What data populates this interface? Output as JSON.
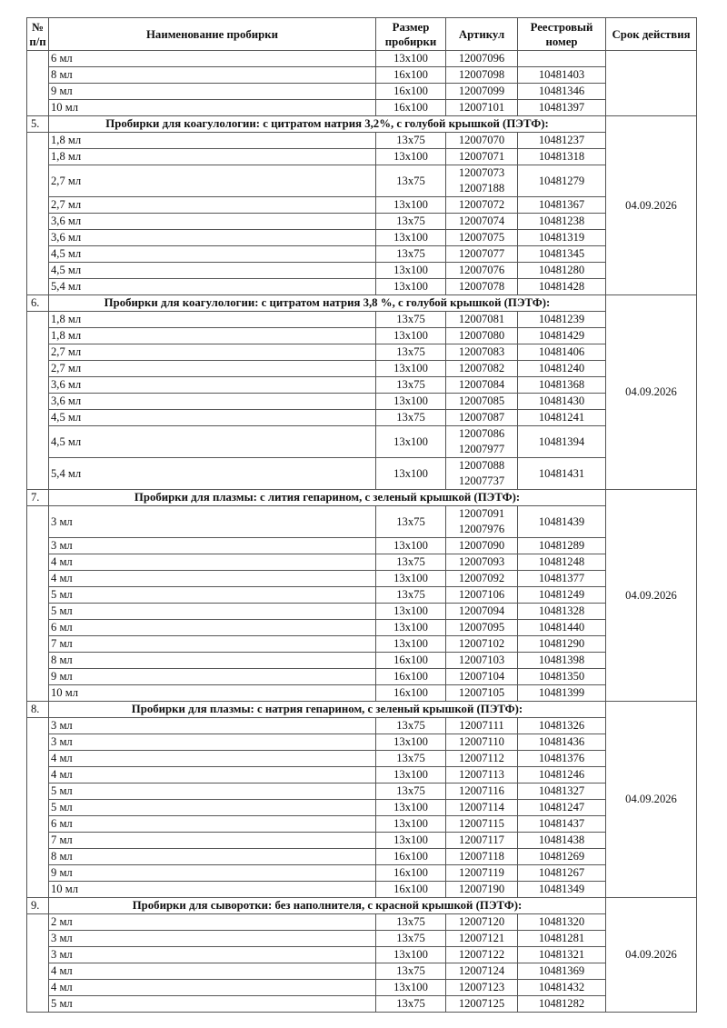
{
  "header": {
    "num": "№ п/п",
    "name": "Наименование пробирки",
    "size": "Размер пробирки",
    "article": "Артикул",
    "reg": "Реестровый номер",
    "date": "Срок действия"
  },
  "sections": [
    {
      "num": "",
      "title": "",
      "date": "",
      "rows": [
        {
          "name": "6 мл",
          "size": "13x100",
          "articles": [
            "12007096"
          ],
          "reg": ""
        },
        {
          "name": "8 мл",
          "size": "16x100",
          "articles": [
            "12007098"
          ],
          "reg": "10481403"
        },
        {
          "name": "9 мл",
          "size": "16x100",
          "articles": [
            "12007099"
          ],
          "reg": "10481346"
        },
        {
          "name": "10 мл",
          "size": "16x100",
          "articles": [
            "12007101"
          ],
          "reg": "10481397"
        }
      ]
    },
    {
      "num": "5.",
      "title": "Пробирки для коагулологии: с цитратом натрия 3,2%, с голубой крышкой (ПЭТФ):",
      "date": "04.09.2026",
      "rows": [
        {
          "name": "1,8 мл",
          "size": "13x75",
          "articles": [
            "12007070"
          ],
          "reg": "10481237"
        },
        {
          "name": "1,8 мл",
          "size": "13x100",
          "articles": [
            "12007071"
          ],
          "reg": "10481318"
        },
        {
          "name": "2,7 мл",
          "size": "13x75",
          "articles": [
            "12007073",
            "12007188"
          ],
          "reg": "10481279"
        },
        {
          "name": "2,7 мл",
          "size": "13x100",
          "articles": [
            "12007072"
          ],
          "reg": "10481367"
        },
        {
          "name": "3,6 мл",
          "size": "13x75",
          "articles": [
            "12007074"
          ],
          "reg": "10481238"
        },
        {
          "name": "3,6 мл",
          "size": "13x100",
          "articles": [
            "12007075"
          ],
          "reg": "10481319"
        },
        {
          "name": "4,5 мл",
          "size": "13x75",
          "articles": [
            "12007077"
          ],
          "reg": "10481345"
        },
        {
          "name": "4,5 мл",
          "size": "13x100",
          "articles": [
            "12007076"
          ],
          "reg": "10481280"
        },
        {
          "name": "5,4 мл",
          "size": "13x100",
          "articles": [
            "12007078"
          ],
          "reg": "10481428"
        }
      ]
    },
    {
      "num": "6.",
      "title": "Пробирки для коагулологии: с цитратом натрия 3,8 %, с голубой крышкой (ПЭТФ):",
      "date": "04.09.2026",
      "rows": [
        {
          "name": "1,8 мл",
          "size": "13x75",
          "articles": [
            "12007081"
          ],
          "reg": "10481239"
        },
        {
          "name": "1,8 мл",
          "size": "13x100",
          "articles": [
            "12007080"
          ],
          "reg": "10481429"
        },
        {
          "name": "2,7 мл",
          "size": "13x75",
          "articles": [
            "12007083"
          ],
          "reg": "10481406"
        },
        {
          "name": "2,7 мл",
          "size": "13x100",
          "articles": [
            "12007082"
          ],
          "reg": "10481240"
        },
        {
          "name": "3,6 мл",
          "size": "13x75",
          "articles": [
            "12007084"
          ],
          "reg": "10481368"
        },
        {
          "name": "3,6 мл",
          "size": "13x100",
          "articles": [
            "12007085"
          ],
          "reg": "10481430"
        },
        {
          "name": "4,5 мл",
          "size": "13x75",
          "articles": [
            "12007087"
          ],
          "reg": "10481241"
        },
        {
          "name": "4,5 мл",
          "size": "13x100",
          "articles": [
            "12007086",
            "12007977"
          ],
          "reg": "10481394"
        },
        {
          "name": "5,4 мл",
          "size": "13x100",
          "articles": [
            "12007088",
            "12007737"
          ],
          "reg": "10481431"
        }
      ]
    },
    {
      "num": "7.",
      "title": "Пробирки для плазмы: с лития гепарином, с зеленый крышкой (ПЭТФ):",
      "date": "04.09.2026",
      "rows": [
        {
          "name": "3 мл",
          "size": "13x75",
          "articles": [
            "12007091",
            "12007976"
          ],
          "reg": "10481439"
        },
        {
          "name": "3 мл",
          "size": "13x100",
          "articles": [
            "12007090"
          ],
          "reg": "10481289"
        },
        {
          "name": "4 мл",
          "size": "13x75",
          "articles": [
            "12007093"
          ],
          "reg": "10481248"
        },
        {
          "name": "4 мл",
          "size": "13x100",
          "articles": [
            "12007092"
          ],
          "reg": "10481377"
        },
        {
          "name": "5 мл",
          "size": "13x75",
          "articles": [
            "12007106"
          ],
          "reg": "10481249"
        },
        {
          "name": "5 мл",
          "size": "13x100",
          "articles": [
            "12007094"
          ],
          "reg": "10481328"
        },
        {
          "name": "6 мл",
          "size": "13x100",
          "articles": [
            "12007095"
          ],
          "reg": "10481440"
        },
        {
          "name": "7 мл",
          "size": "13x100",
          "articles": [
            "12007102"
          ],
          "reg": "10481290"
        },
        {
          "name": "8 мл",
          "size": "16x100",
          "articles": [
            "12007103"
          ],
          "reg": "10481398"
        },
        {
          "name": "9 мл",
          "size": "16x100",
          "articles": [
            "12007104"
          ],
          "reg": "10481350"
        },
        {
          "name": "10 мл",
          "size": "16x100",
          "articles": [
            "12007105"
          ],
          "reg": "10481399"
        }
      ]
    },
    {
      "num": "8.",
      "title": "Пробирки для плазмы: с натрия гепарином, с зеленый крышкой (ПЭТФ):",
      "date": "04.09.2026",
      "rows": [
        {
          "name": "3 мл",
          "size": "13x75",
          "articles": [
            "12007111"
          ],
          "reg": "10481326"
        },
        {
          "name": "3 мл",
          "size": "13x100",
          "articles": [
            "12007110"
          ],
          "reg": "10481436"
        },
        {
          "name": "4 мл",
          "size": "13x75",
          "articles": [
            "12007112"
          ],
          "reg": "10481376"
        },
        {
          "name": "4 мл",
          "size": "13x100",
          "articles": [
            "12007113"
          ],
          "reg": "10481246"
        },
        {
          "name": "5 мл",
          "size": "13x75",
          "articles": [
            "12007116"
          ],
          "reg": "10481327"
        },
        {
          "name": "5 мл",
          "size": "13x100",
          "articles": [
            "12007114"
          ],
          "reg": "10481247"
        },
        {
          "name": "6 мл",
          "size": "13x100",
          "articles": [
            "12007115"
          ],
          "reg": "10481437"
        },
        {
          "name": "7 мл",
          "size": "13x100",
          "articles": [
            "12007117"
          ],
          "reg": "10481438"
        },
        {
          "name": "8 мл",
          "size": "16x100",
          "articles": [
            "12007118"
          ],
          "reg": "10481269"
        },
        {
          "name": "9 мл",
          "size": "16x100",
          "articles": [
            "12007119"
          ],
          "reg": "10481267"
        },
        {
          "name": "10 мл",
          "size": "16x100",
          "articles": [
            "12007190"
          ],
          "reg": "10481349"
        }
      ]
    },
    {
      "num": "9.",
      "title": "Пробирки для сыворотки: без наполнителя, с красной крышкой (ПЭТФ):",
      "date": "04.09.2026",
      "rows": [
        {
          "name": "2 мл",
          "size": "13x75",
          "articles": [
            "12007120"
          ],
          "reg": "10481320"
        },
        {
          "name": "3 мл",
          "size": "13x75",
          "articles": [
            "12007121"
          ],
          "reg": "10481281"
        },
        {
          "name": "3 мл",
          "size": "13x100",
          "articles": [
            "12007122"
          ],
          "reg": "10481321"
        },
        {
          "name": "4 мл",
          "size": "13x75",
          "articles": [
            "12007124"
          ],
          "reg": "10481369"
        },
        {
          "name": "4 мл",
          "size": "13x100",
          "articles": [
            "12007123"
          ],
          "reg": "10481432"
        },
        {
          "name": "5 мл",
          "size": "13x75",
          "articles": [
            "12007125"
          ],
          "reg": "10481282"
        }
      ]
    }
  ]
}
